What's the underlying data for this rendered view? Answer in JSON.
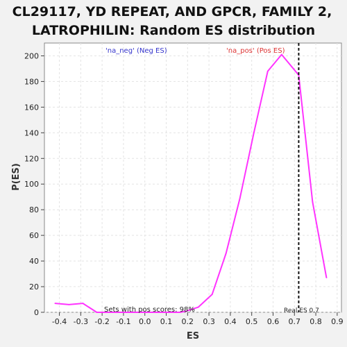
{
  "chart_data": {
    "type": "line",
    "title_lines": [
      "CL29117, YD REPEAT, AND GPCR, FAMILY 2,",
      "LATROPHILIN: Random ES distribution"
    ],
    "xlabel": "ES",
    "ylabel": "P(ES)",
    "xlim": [
      -0.47,
      0.92
    ],
    "ylim": [
      0,
      210
    ],
    "x_ticks": [
      -0.4,
      -0.3,
      -0.2,
      -0.1,
      0.0,
      0.1,
      0.2,
      0.3,
      0.4,
      0.5,
      0.6,
      0.7,
      0.8,
      0.9
    ],
    "x_tick_labels": [
      "-0.4",
      "-0.3",
      "-0.2",
      "-0.1",
      "0.0",
      "0.1",
      "0.2",
      "0.3",
      "0.4",
      "0.5",
      "0.6",
      "0.7",
      "0.8",
      "0.9"
    ],
    "y_ticks": [
      0,
      20,
      40,
      60,
      80,
      100,
      120,
      140,
      160,
      180,
      200
    ],
    "y_tick_labels": [
      "0",
      "20",
      "40",
      "60",
      "80",
      "100",
      "120",
      "140",
      "160",
      "180",
      "200"
    ],
    "grid": true,
    "series": [
      {
        "color": "#ff33ff",
        "x": [
          -0.42,
          -0.355,
          -0.29,
          -0.225,
          -0.16,
          -0.095,
          -0.03,
          0.035,
          0.1,
          0.165,
          0.195,
          0.25,
          0.315,
          0.38,
          0.445,
          0.51,
          0.575,
          0.64,
          0.72,
          0.785,
          0.85
        ],
        "y": [
          7,
          6,
          7,
          0,
          0,
          0,
          0,
          0,
          0,
          0,
          1,
          4,
          14,
          46,
          89,
          140,
          188,
          201,
          185,
          86,
          27
        ]
      }
    ],
    "real_es": {
      "x": 0.72,
      "label": "Real ES 0.7",
      "color": "#111111"
    },
    "annotations": {
      "neg_label": "'na_neg' (Neg ES)",
      "neg_color": "#3333cc",
      "pos_label": "'na_pos' (Pos ES)",
      "pos_color": "#dd3333",
      "pos_scores_text": "Sets with pos scores: 98%"
    }
  }
}
